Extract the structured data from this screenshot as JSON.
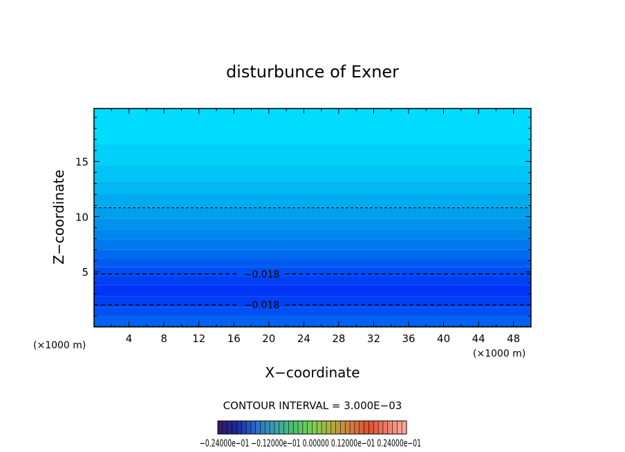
{
  "chart_data": {
    "type": "contour",
    "title": "disturbunce of Exner",
    "xlabel": "X−coordinate",
    "ylabel": "Z−coordinate",
    "x_unit_left": "(×1000 m)",
    "x_unit_right": "(×1000 m)",
    "xlim": [
      0,
      50
    ],
    "ylim": [
      0,
      19.8
    ],
    "x_ticks": [
      4,
      8,
      12,
      16,
      20,
      24,
      28,
      32,
      36,
      40,
      44,
      48
    ],
    "y_ticks": [
      5,
      10,
      15
    ],
    "contour_interval_text": "CONTOUR INTERVAL = 3.000E−03",
    "contour_interval": 0.003,
    "contour_lines": [
      {
        "label": "−0.018",
        "z": 2.0,
        "style": "dashed"
      },
      {
        "label": "−0.018",
        "z": 4.8,
        "style": "dashed"
      },
      {
        "z": 10.8,
        "style": "dashed"
      },
      {
        "z": 0.05,
        "style": "dashed"
      }
    ],
    "fill_bands": [
      {
        "z_top": 19.8,
        "z_bottom": 16.6,
        "color": "#00dcff"
      },
      {
        "z_top": 16.6,
        "z_bottom": 14.6,
        "color": "#00d0fa"
      },
      {
        "z_top": 14.6,
        "z_bottom": 13.2,
        "color": "#00c4f6"
      },
      {
        "z_top": 13.2,
        "z_bottom": 12.0,
        "color": "#00b8f2"
      },
      {
        "z_top": 12.0,
        "z_bottom": 10.8,
        "color": "#00acef"
      },
      {
        "z_top": 10.8,
        "z_bottom": 9.8,
        "color": "#00a0ed"
      },
      {
        "z_top": 9.8,
        "z_bottom": 8.8,
        "color": "#0092ec"
      },
      {
        "z_top": 8.8,
        "z_bottom": 7.9,
        "color": "#0086ec"
      },
      {
        "z_top": 7.9,
        "z_bottom": 7.0,
        "color": "#0078ee"
      },
      {
        "z_top": 7.0,
        "z_bottom": 6.2,
        "color": "#006aef"
      },
      {
        "z_top": 6.2,
        "z_bottom": 5.4,
        "color": "#005cf1"
      },
      {
        "z_top": 5.4,
        "z_bottom": 4.6,
        "color": "#004ef3"
      },
      {
        "z_top": 4.6,
        "z_bottom": 3.8,
        "color": "#0040f5"
      },
      {
        "z_top": 3.8,
        "z_bottom": 2.8,
        "color": "#0034f7"
      },
      {
        "z_top": 2.8,
        "z_bottom": 1.8,
        "color": "#0040f5"
      },
      {
        "z_top": 1.8,
        "z_bottom": 1.0,
        "color": "#0050f3"
      },
      {
        "z_top": 1.0,
        "z_bottom": 0.0,
        "color": "#0062f0"
      }
    ],
    "colorbar": {
      "labels_text": "−0.24000e−01 −0.12000e−01 0.00000 0.12000e−01 0.24000e−01",
      "stops": [
        "#3a1a5c",
        "#1a2aa0",
        "#2a6ad0",
        "#3aa0b0",
        "#4ac070",
        "#7ad050",
        "#b0b040",
        "#d08040",
        "#e05030",
        "#f08070",
        "#f8b0a0"
      ]
    },
    "grid": false,
    "legend": "none"
  }
}
